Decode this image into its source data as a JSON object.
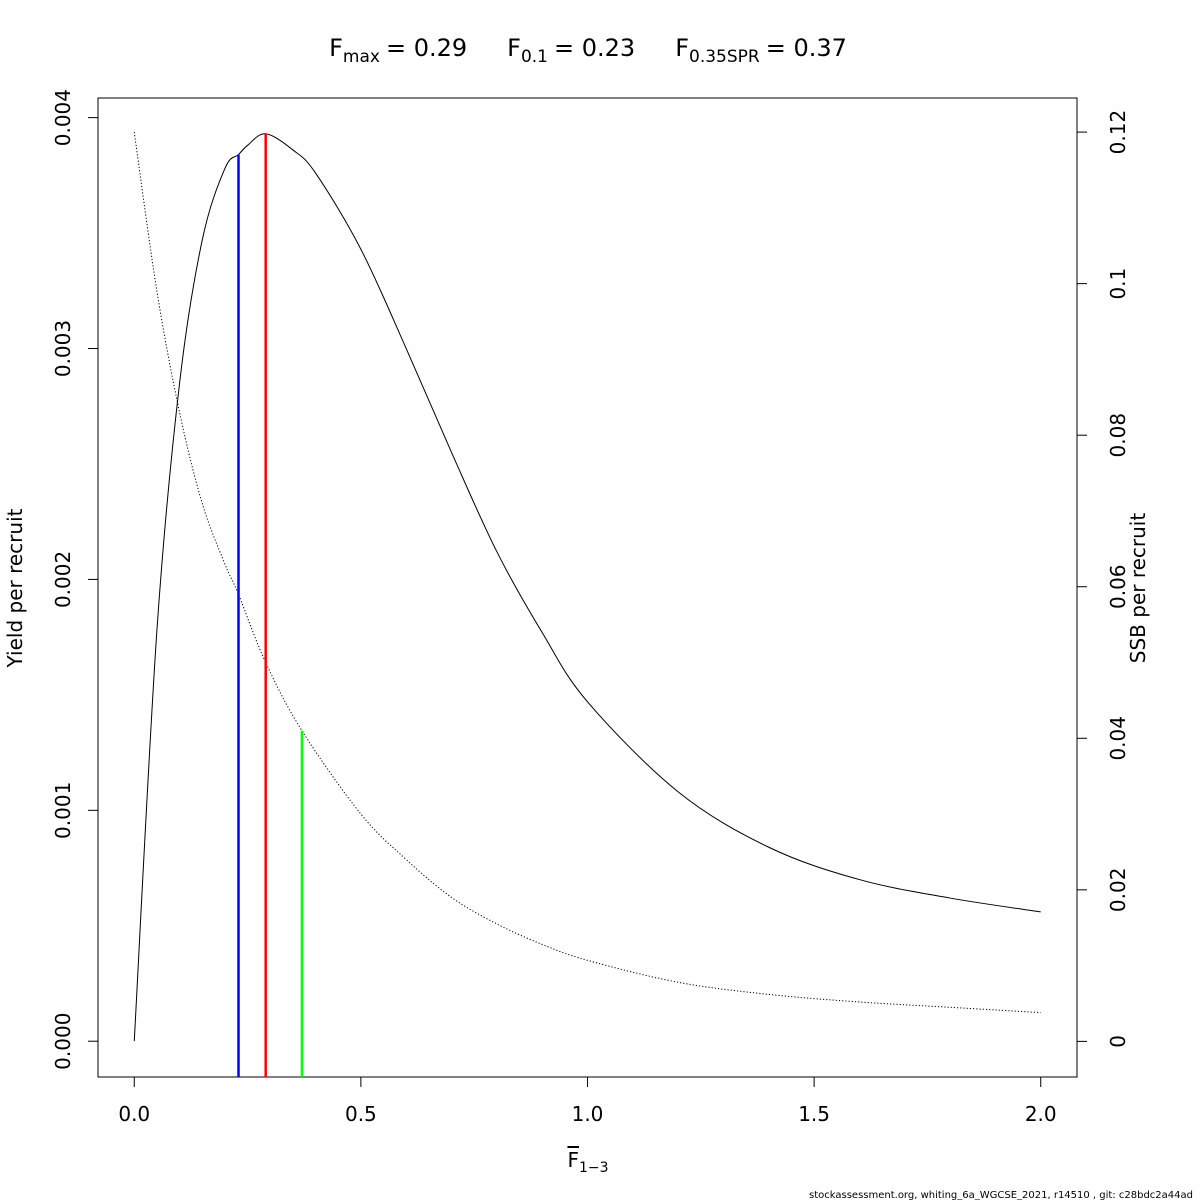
{
  "chart_data": {
    "type": "line",
    "title_parts": [
      {
        "base": "F",
        "sub": "max",
        "value": "= 0.29"
      },
      {
        "base": "F",
        "sub": "0.1",
        "value": "= 0.23"
      },
      {
        "base": "F",
        "sub": "0.35SPR",
        "value": "= 0.37"
      }
    ],
    "xlabel": {
      "base": "F",
      "sub": "1−3",
      "overline": true
    },
    "ylabel_left": "Yield per recruit",
    "ylabel_right": "SSB per recruit",
    "xlim": [
      -0.08,
      2.08
    ],
    "ylim_left": [
      -0.000155,
      0.004085
    ],
    "ylim_right": [
      -0.0047,
      0.1245
    ],
    "x_ticks": [
      {
        "value": 0.0,
        "label": "0.0"
      },
      {
        "value": 0.5,
        "label": "0.5"
      },
      {
        "value": 1.0,
        "label": "1.0"
      },
      {
        "value": 1.5,
        "label": "1.5"
      },
      {
        "value": 2.0,
        "label": "2.0"
      }
    ],
    "y_left_ticks": [
      {
        "value": 0.0,
        "label": "0.000"
      },
      {
        "value": 0.001,
        "label": "0.001"
      },
      {
        "value": 0.002,
        "label": "0.002"
      },
      {
        "value": 0.003,
        "label": "0.003"
      },
      {
        "value": 0.004,
        "label": "0.004"
      }
    ],
    "y_right_ticks": [
      {
        "value": 0.0,
        "label": "0"
      },
      {
        "value": 0.02,
        "label": "0.02"
      },
      {
        "value": 0.04,
        "label": "0.04"
      },
      {
        "value": 0.06,
        "label": "0.06"
      },
      {
        "value": 0.08,
        "label": "0.08"
      },
      {
        "value": 0.1,
        "label": "0.1"
      },
      {
        "value": 0.12,
        "label": "0.12"
      }
    ],
    "series": [
      {
        "style": "solid",
        "color": "#000000",
        "axis": "left",
        "x": [
          0,
          0.05,
          0.1,
          0.15,
          0.2,
          0.23,
          0.25,
          0.29,
          0.35,
          0.4,
          0.5,
          0.6,
          0.7,
          0.8,
          0.9,
          1.0,
          1.2,
          1.4,
          1.6,
          1.8,
          2.0
        ],
        "y": [
          0.0,
          0.00178,
          0.00285,
          0.00347,
          0.00378,
          0.00384,
          0.00388,
          0.00393,
          0.00386,
          0.00376,
          0.00343,
          0.003,
          0.00255,
          0.00212,
          0.00177,
          0.00147,
          0.00108,
          0.00084,
          0.0007,
          0.00062,
          0.00056
        ]
      },
      {
        "style": "dotted",
        "color": "#000000",
        "axis": "right",
        "x": [
          0,
          0.05,
          0.1,
          0.15,
          0.2,
          0.23,
          0.29,
          0.37,
          0.5,
          0.6,
          0.7,
          0.8,
          0.9,
          1.0,
          1.2,
          1.4,
          1.6,
          1.8,
          2.0
        ],
        "y": [
          0.12,
          0.099,
          0.083,
          0.071,
          0.063,
          0.059,
          0.05,
          0.041,
          0.03,
          0.024,
          0.019,
          0.0155,
          0.0128,
          0.0107,
          0.0078,
          0.0062,
          0.0052,
          0.0045,
          0.0038
        ]
      }
    ],
    "reference_lines": [
      {
        "x": 0.23,
        "y_top": 0.00384,
        "axis": "left",
        "color": "#0000ff"
      },
      {
        "x": 0.29,
        "y_top": 0.00393,
        "axis": "left",
        "color": "#ff0000"
      },
      {
        "x": 0.37,
        "y_top": 0.041,
        "axis": "right",
        "color": "#00ff00"
      }
    ],
    "grid": false,
    "footer": "stockassessment.org, whiting_6a_WGCSE_2021, r14510 , git: c28bdc2a44ad"
  }
}
